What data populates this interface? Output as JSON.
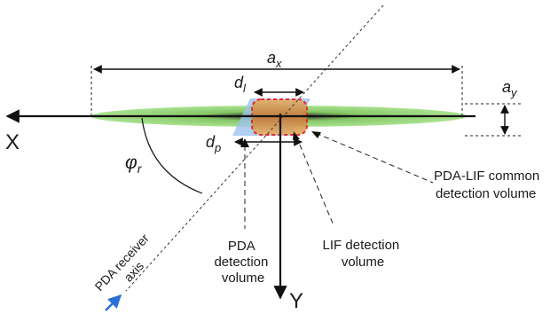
{
  "diagram": {
    "labels": {
      "x_axis": "X",
      "y_axis": "Y",
      "a_x": {
        "main": "a",
        "sub": "x"
      },
      "a_y": {
        "main": "a",
        "sub": "y"
      },
      "d_l": {
        "main": "d",
        "sub": "l"
      },
      "d_p": {
        "main": "d",
        "sub": "p"
      },
      "phi_r": {
        "main": "φ",
        "sub": "r"
      },
      "common_volume": [
        "PDA-LIF common",
        "detection volume"
      ],
      "pda_volume": [
        "PDA",
        "detection",
        "volume"
      ],
      "lif_volume": [
        "LIF detection",
        "volume"
      ],
      "receiver_axis": [
        "PDA receiver",
        "axis"
      ]
    },
    "colors": {
      "ellipse_green": "#9edc7a",
      "pda_blue": "#9cc3ee",
      "common_orange": "#e8a25a",
      "common_border": "#e02020",
      "arrow_blue": "#2a6fd6",
      "line": "#111111"
    }
  }
}
